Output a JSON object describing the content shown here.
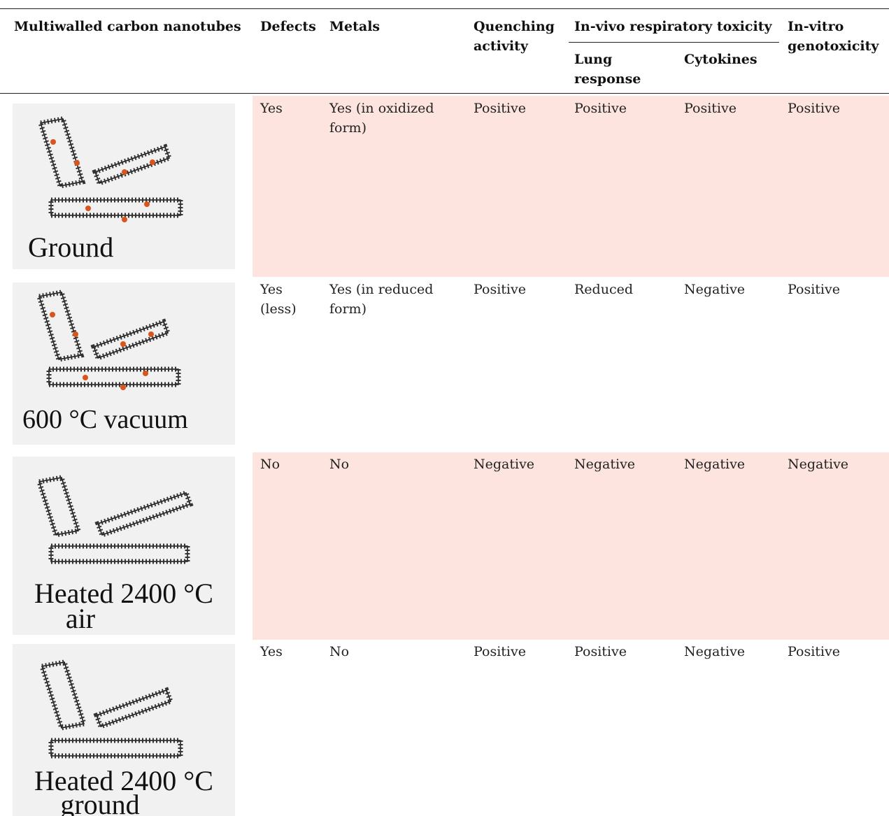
{
  "table": {
    "headers": {
      "mwcnt": "Multiwalled carbon nanotubes",
      "defects": "Defects",
      "metals": "Metals",
      "quenching": "Quenching activity",
      "invivo_group": "In-vivo respiratory toxicity",
      "lung": "Lung response",
      "cytokines": "Cytokines",
      "invitro": "In-vitro genotoxicity"
    },
    "rows": [
      {
        "label": "Ground",
        "label_line2": "",
        "defects": "Yes",
        "metals": "Yes (in oxidized form)",
        "quenching": "Positive",
        "lung": "Positive",
        "cytokines": "Positive",
        "genotoxicity": "Positive"
      },
      {
        "label": "600 °C vacuum",
        "label_line2": "",
        "defects": "Yes (less)",
        "metals": "Yes (in reduced form)",
        "quenching": "Positive",
        "lung": "Reduced",
        "cytokines": "Negative",
        "genotoxicity": "Positive"
      },
      {
        "label": "Heated 2400 °C",
        "label_line2": "air",
        "defects": "No",
        "metals": "No",
        "quenching": "Negative",
        "lung": "Negative",
        "cytokines": "Negative",
        "genotoxicity": "Negative"
      },
      {
        "label": "Heated 2400 °C",
        "label_line2": "ground",
        "defects": "Yes",
        "metals": "No",
        "quenching": "Positive",
        "lung": "Positive",
        "cytokines": "Negative",
        "genotoxicity": "Positive"
      }
    ]
  },
  "colors": {
    "highlight_row": "#fde4df",
    "thumbnail_bg": "#f1f1f1",
    "defect_dot": "#d9541e"
  }
}
